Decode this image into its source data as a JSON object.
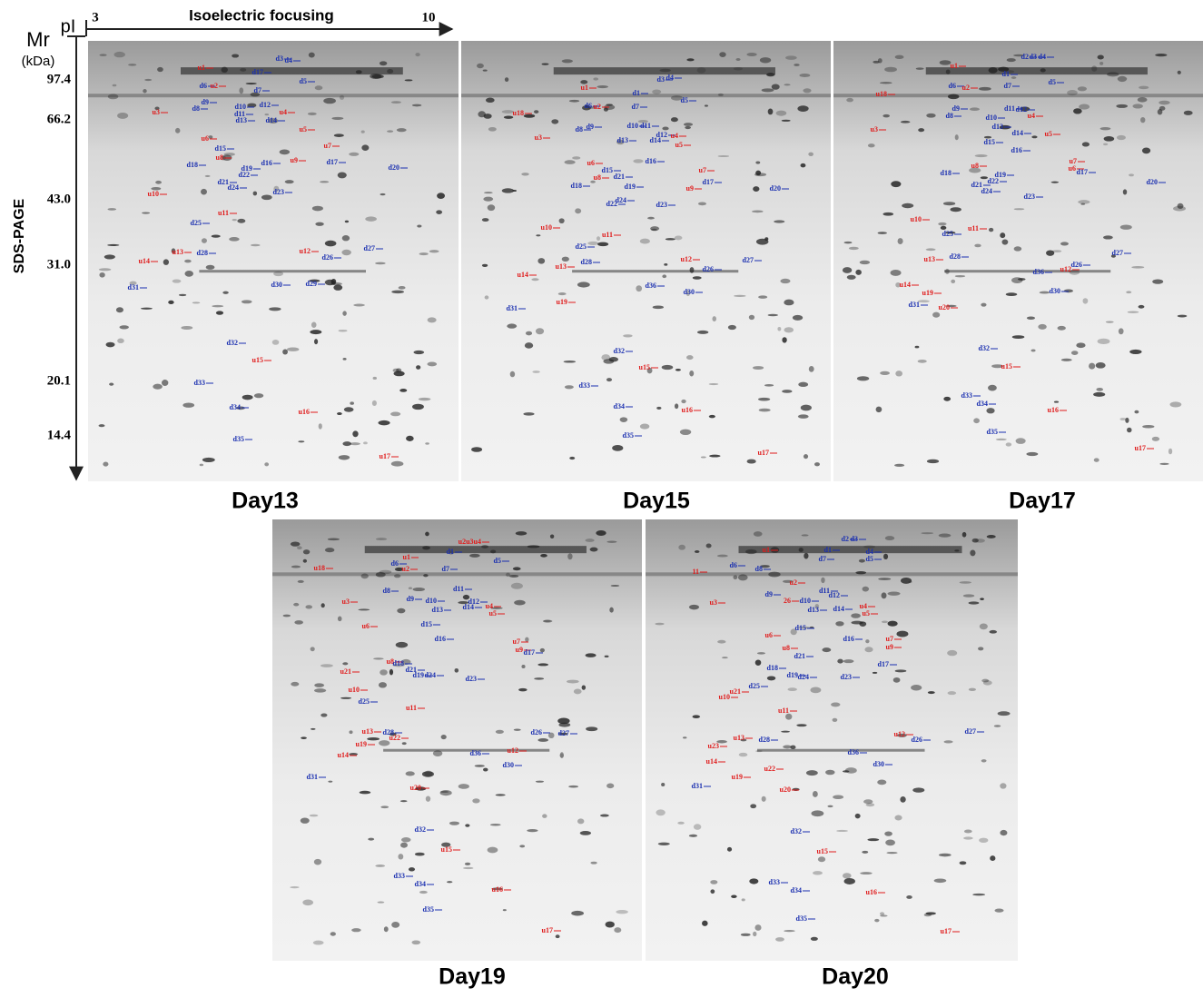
{
  "axes": {
    "mr_label": "Mr",
    "mr_unit": "(kDa)",
    "pi_label": "pI",
    "pi_low": "3",
    "pi_high": "10",
    "x_title": "Isoelectric focusing",
    "y_title": "SDS-PAGE",
    "mr_ticks": [
      "97.4",
      "66.2",
      "43.0",
      "31.0",
      "20.1",
      "14.4"
    ]
  },
  "panels": [
    {
      "title": "Day13",
      "spots": [
        "u1",
        "d6",
        "u2",
        "d17",
        "d3",
        "d4",
        "d5",
        "d7",
        "u3",
        "d9",
        "d8",
        "d10",
        "d12",
        "d11",
        "d13",
        "d14",
        "u4",
        "u5",
        "u6",
        "u7",
        "d15",
        "u8",
        "u9",
        "d17",
        "d18",
        "d16",
        "d19",
        "d22",
        "d21",
        "d24",
        "d23",
        "d20",
        "u10",
        "d25",
        "u11",
        "u13",
        "u12",
        "d26",
        "d27",
        "d28",
        "u14",
        "d29",
        "d30",
        "d31",
        "d32",
        "u15",
        "d33",
        "d34",
        "u16",
        "d35",
        "u17"
      ]
    },
    {
      "title": "Day15",
      "spots": [
        "d1",
        "d3",
        "d4",
        "d5",
        "d6",
        "u2",
        "u1",
        "d7",
        "u18",
        "u3",
        "d9",
        "d8",
        "d10",
        "d11",
        "d12",
        "d13",
        "d14",
        "u4",
        "u5",
        "u6",
        "d15",
        "d16",
        "u7",
        "d21",
        "u8",
        "d18",
        "d19",
        "d17",
        "u9",
        "d22",
        "d24",
        "d23",
        "d20",
        "u10",
        "u11",
        "d25",
        "u12",
        "d26",
        "d27",
        "d28",
        "u13",
        "u14",
        "d36",
        "d30",
        "u19",
        "d31",
        "d32",
        "u15",
        "d33",
        "d34",
        "u16",
        "d35",
        "u17"
      ]
    },
    {
      "title": "Day17",
      "spots": [
        "u1",
        "d2",
        "d3",
        "d4",
        "d1",
        "d6",
        "u2",
        "d5",
        "d7",
        "u18",
        "d9",
        "d8",
        "d11",
        "d12",
        "d10",
        "u4",
        "d13",
        "d14",
        "u3",
        "d15",
        "u5",
        "d16",
        "u7",
        "u6",
        "d17",
        "u8",
        "d18",
        "d19",
        "d22",
        "d21",
        "d24",
        "d23",
        "d20",
        "u10",
        "d25",
        "u11",
        "d27",
        "d26",
        "u13",
        "d28",
        "u12",
        "d36",
        "u14",
        "u19",
        "d30",
        "d31",
        "u20",
        "d32",
        "u15",
        "d33",
        "d34",
        "u16",
        "d35",
        "u17"
      ]
    },
    {
      "title": "Day19",
      "spots": [
        "u2u3u4",
        "d1",
        "d5",
        "u18",
        "d6",
        "u1",
        "u2",
        "d7",
        "d8",
        "d9",
        "d11",
        "d10",
        "d12",
        "d14",
        "d13",
        "u4",
        "u5",
        "u3",
        "d15",
        "u6",
        "d16",
        "u7",
        "u9",
        "d17",
        "u8",
        "d18",
        "d21",
        "d19",
        "d24",
        "d23",
        "u21",
        "u10",
        "d25",
        "u11",
        "d28",
        "d26",
        "d27",
        "u13",
        "u22",
        "u19",
        "u14",
        "d36",
        "u12",
        "d30",
        "d31",
        "u20",
        "d32",
        "u15",
        "d33",
        "d34",
        "u16",
        "d35",
        "u17"
      ]
    },
    {
      "title": "Day20",
      "spots": [
        "d2",
        "d3",
        "d1",
        "d4",
        "d7",
        "d5",
        "u1",
        "d6",
        "d8",
        "11",
        "u2",
        "d9",
        "26",
        "d11",
        "d12",
        "d10",
        "d14",
        "d13",
        "u4",
        "u5",
        "u3",
        "d15",
        "d16",
        "u7",
        "u9",
        "d17",
        "u6",
        "u8",
        "d21",
        "d18",
        "d19",
        "d24",
        "d23",
        "d25",
        "u21",
        "u10",
        "u11",
        "u12",
        "d26",
        "d27",
        "u13",
        "d28",
        "d36",
        "u23",
        "u14",
        "d30",
        "u22",
        "u19",
        "d31",
        "u20",
        "d32",
        "u15",
        "d33",
        "d34",
        "u16",
        "d35",
        "u17"
      ]
    }
  ]
}
